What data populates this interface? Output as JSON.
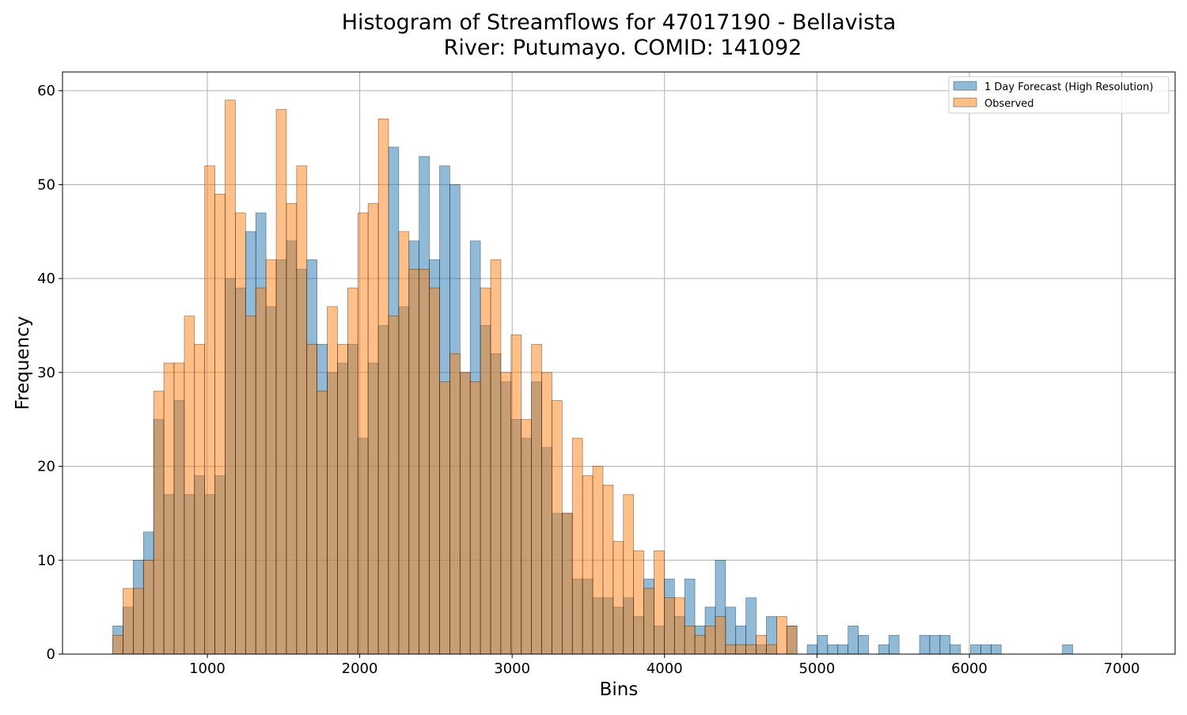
{
  "chart_data": {
    "type": "bar",
    "title": "Histogram of Streamflows for 47017190 - Bellavista",
    "subtitle": "River: Putumayo. COMID: 141092",
    "xlabel": "Bins",
    "ylabel": "Frequency",
    "xlim": [
      50,
      7350
    ],
    "ylim": [
      0,
      62
    ],
    "xticks": [
      1000,
      2000,
      3000,
      4000,
      5000,
      6000,
      7000
    ],
    "yticks": [
      0,
      10,
      20,
      30,
      40,
      50,
      60
    ],
    "grid": true,
    "legend_position": "top-right",
    "bin_start": 380,
    "bin_width": 67,
    "series": [
      {
        "name": "1 Day Forecast (High Resolution)",
        "color": "#1f77b4",
        "values": [
          3,
          5,
          10,
          13,
          25,
          17,
          27,
          17,
          19,
          17,
          19,
          40,
          39,
          45,
          47,
          37,
          42,
          44,
          41,
          42,
          33,
          30,
          31,
          33,
          23,
          31,
          35,
          54,
          37,
          44,
          53,
          42,
          52,
          50,
          30,
          44,
          35,
          32,
          29,
          25,
          23,
          29,
          22,
          15,
          15,
          8,
          8,
          6,
          6,
          5,
          6,
          4,
          8,
          3,
          8,
          4,
          8,
          3,
          5,
          10,
          5,
          3,
          6,
          1,
          4,
          0,
          3,
          0,
          1,
          2,
          1,
          1,
          3,
          2,
          0,
          1,
          2,
          0,
          0,
          2,
          2,
          2,
          1,
          0,
          1,
          1,
          1,
          0,
          0,
          0,
          0,
          0,
          0,
          1
        ]
      },
      {
        "name": "Observed",
        "color": "#ff7f0e",
        "values": [
          2,
          7,
          7,
          10,
          28,
          31,
          31,
          36,
          33,
          52,
          49,
          59,
          47,
          36,
          39,
          42,
          58,
          48,
          52,
          33,
          28,
          37,
          33,
          39,
          47,
          48,
          57,
          36,
          45,
          41,
          41,
          39,
          29,
          32,
          30,
          29,
          39,
          42,
          30,
          34,
          25,
          33,
          30,
          27,
          15,
          23,
          19,
          20,
          18,
          12,
          17,
          11,
          7,
          11,
          6,
          6,
          3,
          2,
          3,
          4,
          1,
          1,
          1,
          2,
          1,
          4,
          3,
          0,
          0,
          0,
          0,
          0,
          0,
          0,
          0,
          0,
          0,
          0,
          0,
          0,
          0,
          0,
          0,
          0,
          0,
          0,
          0,
          0,
          0,
          0,
          0,
          0,
          0,
          0
        ]
      }
    ]
  }
}
